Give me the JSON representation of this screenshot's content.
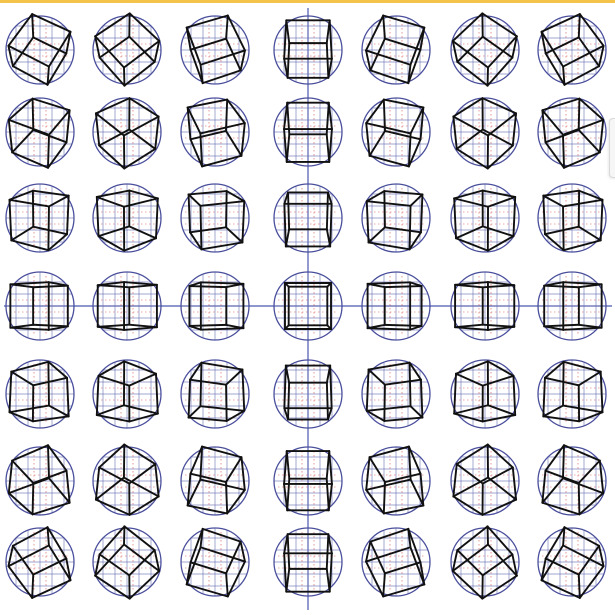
{
  "figure": {
    "type": "cube-rotation-grid",
    "rows": 7,
    "cols": 7,
    "yaw_steps_deg": [
      -60,
      -40,
      -20,
      0,
      20,
      40,
      60
    ],
    "pitch_steps_deg": [
      60,
      40,
      20,
      0,
      -20,
      -40,
      -60
    ]
  },
  "colors": {
    "background": "#ffffff",
    "circle": "#4a4f9c",
    "guide_grid": "#6b71b5",
    "guide_dots": "#d7564f",
    "cube_edges": "#111111",
    "axis_lines": "#4b58b0",
    "accent_strip": "#f5c24a"
  }
}
